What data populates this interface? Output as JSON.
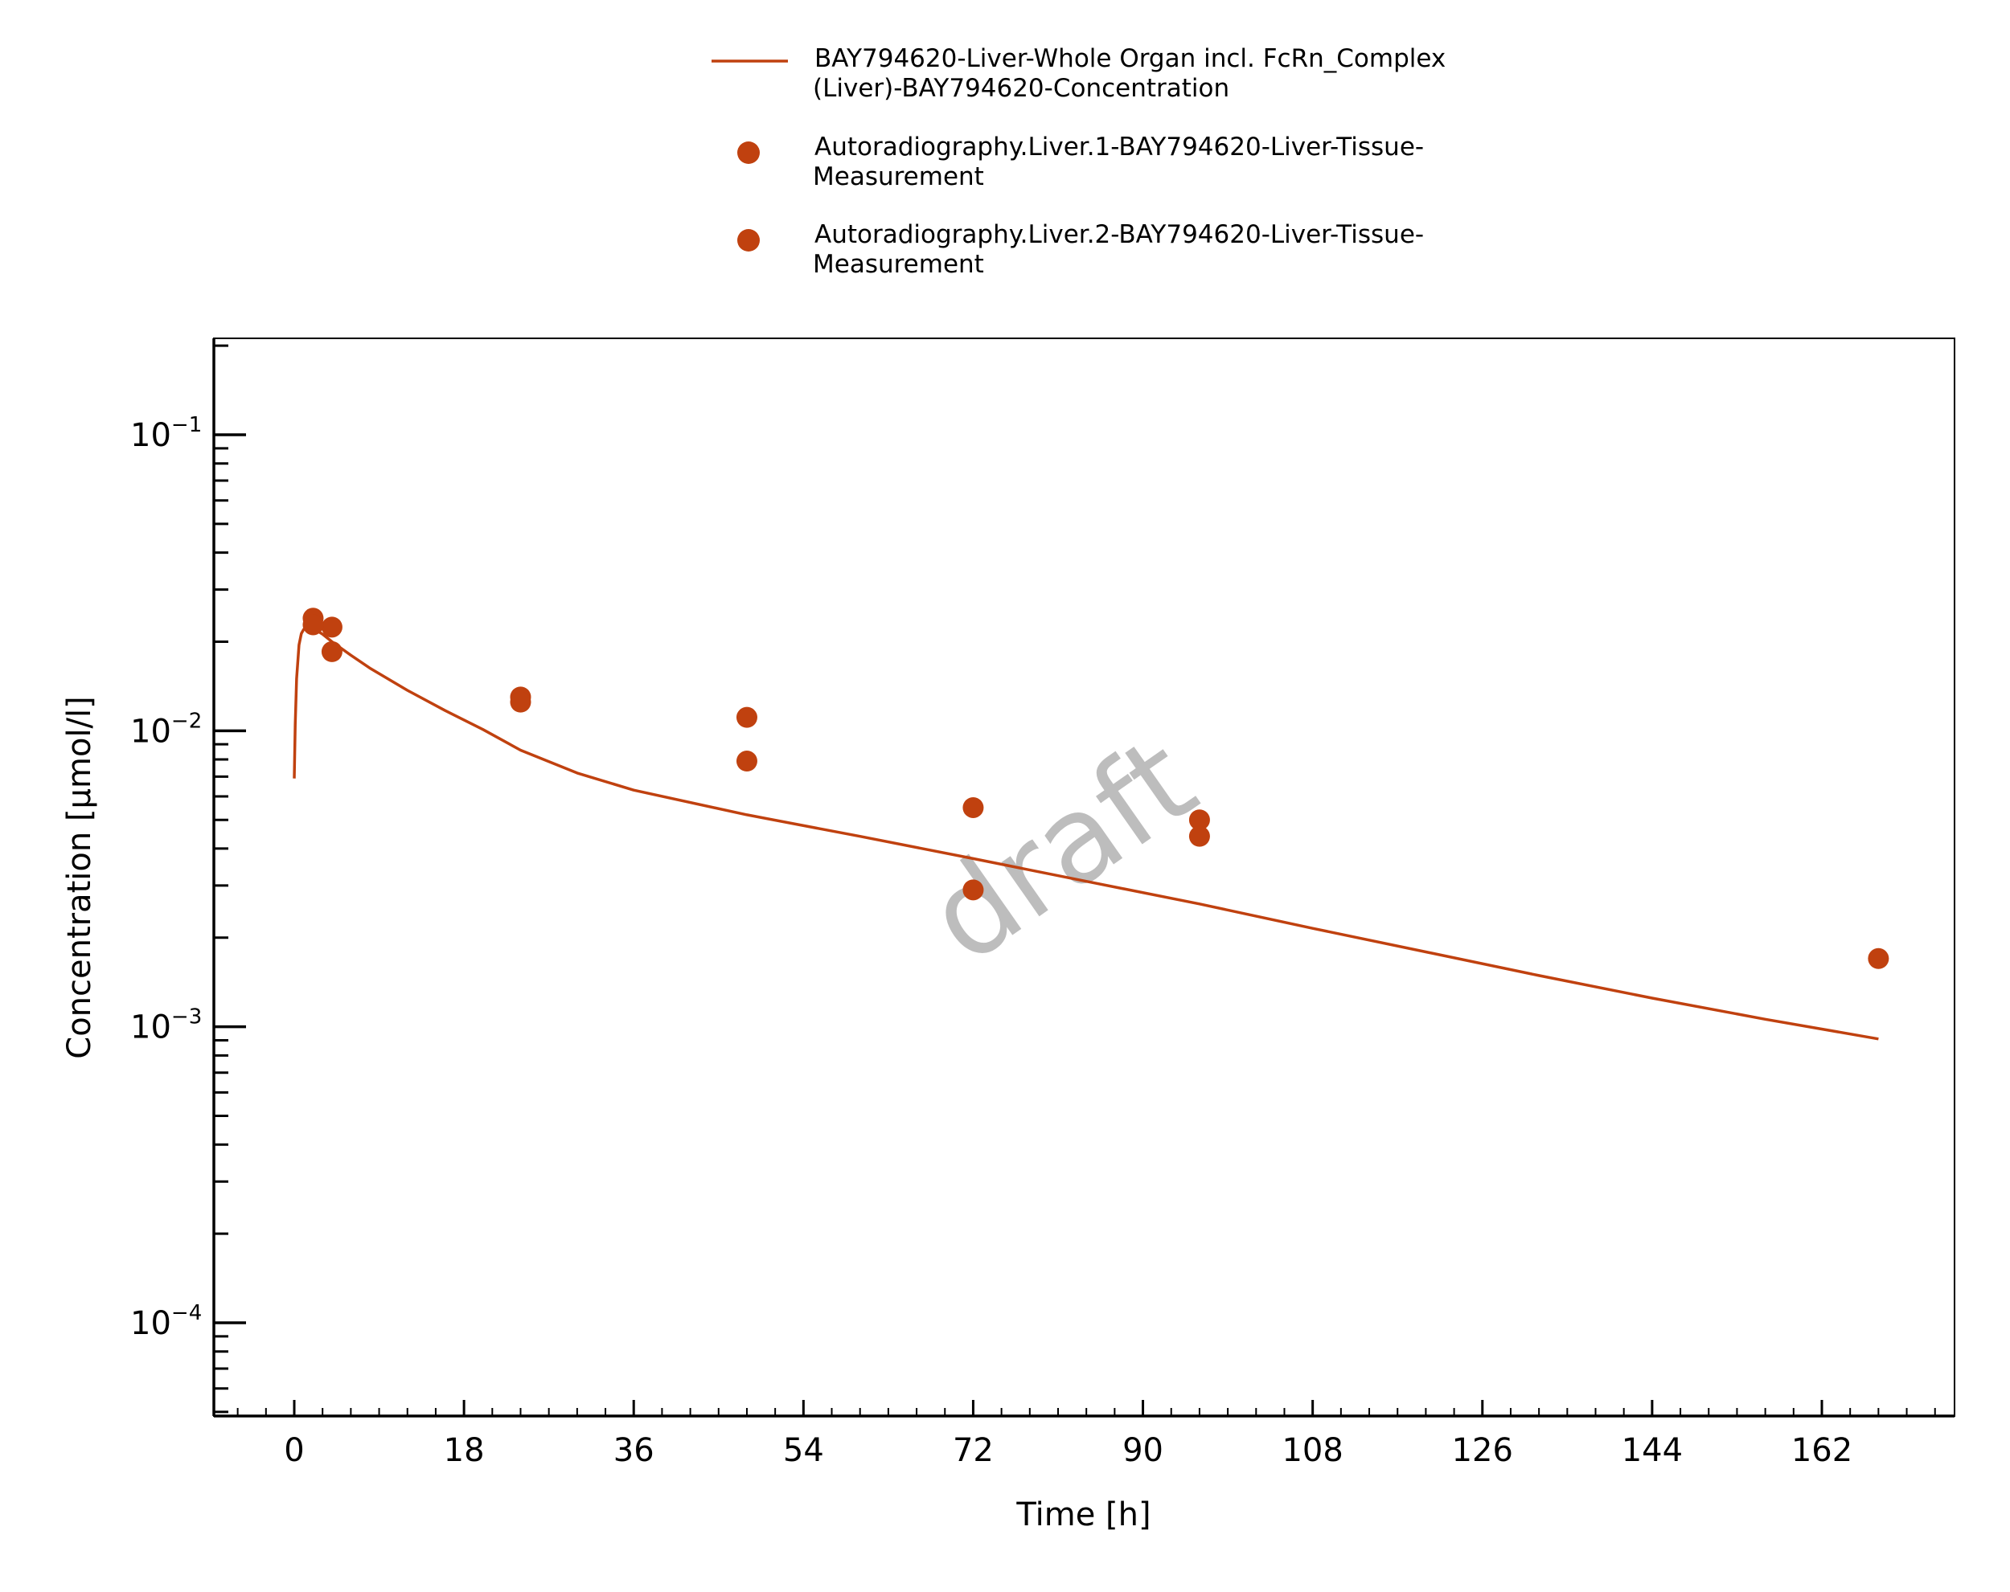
{
  "chart_data": {
    "type": "scatter",
    "xlabel": "Time [h]",
    "ylabel": "Concentration [µmol/l]",
    "x_scale": "linear",
    "y_scale": "log",
    "xlim": [
      -8.5,
      176
    ],
    "ylim": [
      5e-05,
      0.2
    ],
    "x_ticks": [
      0,
      18,
      36,
      54,
      72,
      90,
      108,
      126,
      144,
      162
    ],
    "x_tick_labels": [
      "0",
      "18",
      "36",
      "54",
      "72",
      "90",
      "108",
      "126",
      "144",
      "162"
    ],
    "y_ticks": [
      0.0001,
      0.001,
      0.01,
      0.1
    ],
    "y_tick_labels": [
      {
        "base": "10",
        "exp": "−4"
      },
      {
        "base": "10",
        "exp": "−3"
      },
      {
        "base": "10",
        "exp": "−2"
      },
      {
        "base": "10",
        "exp": "−1"
      }
    ],
    "grid": false,
    "legend_position": "top-center",
    "watermark": "draft",
    "color": "#c0410f",
    "series": [
      {
        "name_lines": [
          "BAY794620-Liver-Whole Organ incl. FcRn_Complex",
          "(Liver)-BAY794620-Concentration"
        ],
        "type": "line",
        "color": "#c0410f",
        "x": [
          0,
          0.1,
          0.25,
          0.5,
          0.75,
          1.0,
          1.5,
          2.0,
          3,
          4,
          6,
          8,
          12,
          16,
          20,
          24,
          30,
          36,
          48,
          60,
          72,
          84,
          96,
          108,
          120,
          132,
          144,
          156,
          168
        ],
        "y": [
          0.0069,
          0.0105,
          0.015,
          0.0195,
          0.0213,
          0.022,
          0.0224,
          0.0222,
          0.0212,
          0.02,
          0.018,
          0.0163,
          0.0137,
          0.0117,
          0.0101,
          0.0086,
          0.0072,
          0.0063,
          0.0052,
          0.0044,
          0.0037,
          0.0031,
          0.0026,
          0.00215,
          0.00179,
          0.00149,
          0.00125,
          0.00106,
          0.00091
        ]
      },
      {
        "name_lines": [
          "Autoradiography.Liver.1-BAY794620-Liver-Tissue-",
          "Measurement"
        ],
        "type": "scatter",
        "color": "#c0410f",
        "x": [
          2,
          4,
          24,
          48,
          72,
          96,
          168
        ],
        "y": [
          0.024,
          0.0224,
          0.013,
          0.0111,
          0.0055,
          0.005,
          0.0017
        ]
      },
      {
        "name_lines": [
          "Autoradiography.Liver.2-BAY794620-Liver-Tissue-",
          "Measurement"
        ],
        "type": "scatter",
        "color": "#c0410f",
        "x": [
          2,
          4,
          24,
          48,
          72,
          96
        ],
        "y": [
          0.0228,
          0.0185,
          0.0125,
          0.0079,
          0.0029,
          0.0044
        ]
      }
    ]
  }
}
